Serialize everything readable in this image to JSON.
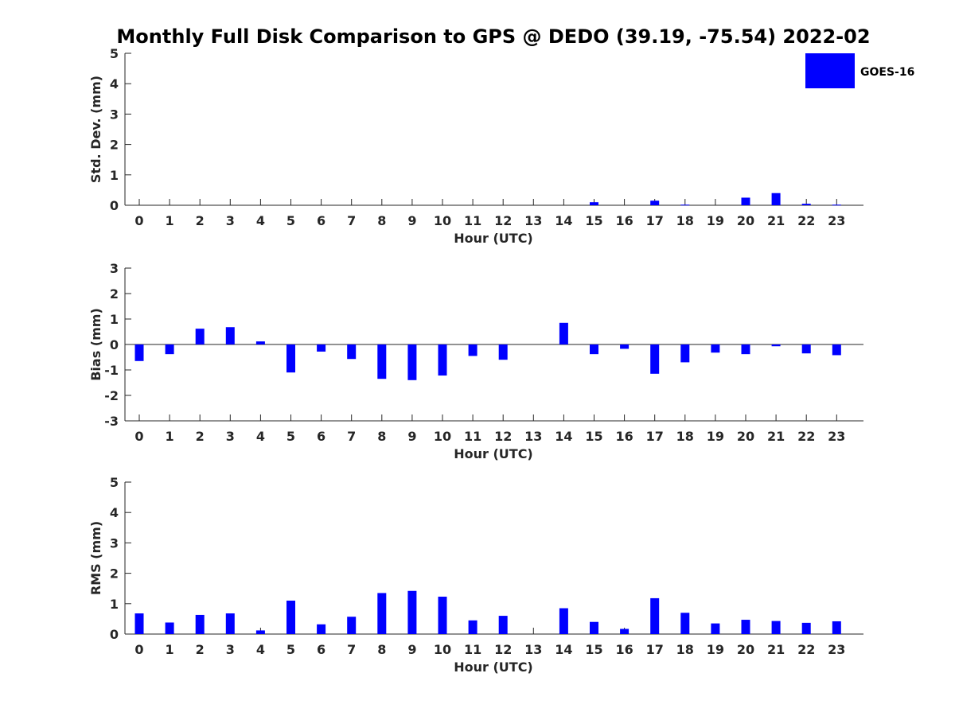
{
  "title": "Monthly Full Disk Comparison to GPS @ DEDO (39.19, -75.54) 2022-02",
  "colors": {
    "bar": "#0000ff",
    "axis": "#262626"
  },
  "chart_data": [
    {
      "type": "bar",
      "xlabel": "Hour (UTC)",
      "ylabel": "Std. Dev. (mm)",
      "ylim": [
        0,
        5
      ],
      "yticks": [
        0,
        1,
        2,
        3,
        4,
        5
      ],
      "categories": [
        "0",
        "1",
        "2",
        "3",
        "4",
        "5",
        "6",
        "7",
        "8",
        "9",
        "10",
        "11",
        "12",
        "13",
        "14",
        "15",
        "16",
        "17",
        "18",
        "19",
        "20",
        "21",
        "22",
        "23"
      ],
      "series": [
        {
          "name": "GOES-16",
          "values": [
            0,
            0,
            0,
            0,
            0,
            0,
            0,
            0,
            0,
            0,
            0,
            0,
            0,
            0,
            0,
            0.1,
            0,
            0.15,
            0.02,
            0,
            0.25,
            0.4,
            0.05,
            0.02
          ]
        }
      ],
      "legend": {
        "position": "top-right",
        "entries": [
          "GOES-16"
        ]
      }
    },
    {
      "type": "bar",
      "xlabel": "Hour (UTC)",
      "ylabel": "Bias (mm)",
      "ylim": [
        -3,
        3
      ],
      "yticks": [
        -3,
        -2,
        -1,
        0,
        1,
        2,
        3
      ],
      "categories": [
        "0",
        "1",
        "2",
        "3",
        "4",
        "5",
        "6",
        "7",
        "8",
        "9",
        "10",
        "11",
        "12",
        "13",
        "14",
        "15",
        "16",
        "17",
        "18",
        "19",
        "20",
        "21",
        "22",
        "23"
      ],
      "series": [
        {
          "name": "GOES-16",
          "values": [
            -0.65,
            -0.38,
            0.62,
            0.68,
            0.12,
            -1.1,
            -0.28,
            -0.57,
            -1.35,
            -1.4,
            -1.22,
            -0.45,
            -0.6,
            0,
            0.85,
            -0.38,
            -0.17,
            -1.15,
            -0.7,
            -0.32,
            -0.38,
            -0.07,
            -0.35,
            -0.42
          ]
        }
      ]
    },
    {
      "type": "bar",
      "xlabel": "Hour (UTC)",
      "ylabel": "RMS (mm)",
      "ylim": [
        0,
        5
      ],
      "yticks": [
        0,
        1,
        2,
        3,
        4,
        5
      ],
      "categories": [
        "0",
        "1",
        "2",
        "3",
        "4",
        "5",
        "6",
        "7",
        "8",
        "9",
        "10",
        "11",
        "12",
        "13",
        "14",
        "15",
        "16",
        "17",
        "18",
        "19",
        "20",
        "21",
        "22",
        "23"
      ],
      "series": [
        {
          "name": "GOES-16",
          "values": [
            0.68,
            0.38,
            0.63,
            0.68,
            0.12,
            1.1,
            0.32,
            0.57,
            1.35,
            1.42,
            1.23,
            0.45,
            0.6,
            0,
            0.85,
            0.4,
            0.17,
            1.18,
            0.7,
            0.35,
            0.47,
            0.43,
            0.37,
            0.42
          ]
        }
      ]
    }
  ]
}
